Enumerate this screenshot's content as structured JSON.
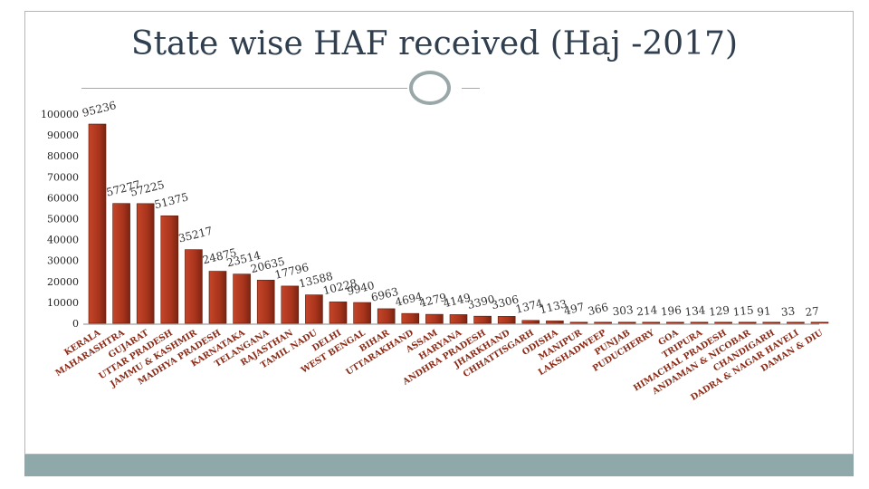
{
  "slide": {
    "title": "State wise HAF received (Haj -2017)"
  },
  "colors": {
    "bar": "#a8341c",
    "bar_dark": "#6e1f0e",
    "frame": "#b5b5b5",
    "footer": "#8fa9ab",
    "title": "#2f3f4f"
  },
  "chart_data": {
    "type": "bar",
    "title": "State wise HAF received (Haj -2017)",
    "xlabel": "",
    "ylabel": "",
    "ylim": [
      0,
      100000
    ],
    "yticks": [
      0,
      10000,
      20000,
      30000,
      40000,
      50000,
      60000,
      70000,
      80000,
      90000,
      100000
    ],
    "grid": false,
    "legend": "none",
    "categories": [
      "KERALA",
      "MAHARASHTRA",
      "GUJARAT",
      "UTTAR PRADESH",
      "JAMMU & KASHMIR",
      "MADHYA PRADESH",
      "KARNATAKA",
      "TELANGANA",
      "RAJASTHAN",
      "TAMIL NADU",
      "DELHI",
      "WEST BENGAL",
      "BIHAR",
      "UTTARAKHAND",
      "ASSAM",
      "HARYANA",
      "ANDHRA PRADESH",
      "JHARKHAND",
      "CHHATTISGARH",
      "ODISHA",
      "MANIPUR",
      "LAKSHADWEEP",
      "PUNJAB",
      "PUDUCHERRY",
      "GOA",
      "TRIPURA",
      "HIMACHAL PRADESH",
      "ANDAMAN & NICOBAR",
      "CHANDIGARH",
      "DADRA & NAGAR HAVELI",
      "DAMAN & DIU"
    ],
    "values": [
      95236,
      57277,
      57225,
      51375,
      35217,
      24875,
      23514,
      20635,
      17796,
      13588,
      10228,
      9940,
      6963,
      4694,
      4279,
      4149,
      3390,
      3306,
      1374,
      1133,
      497,
      366,
      303,
      214,
      196,
      134,
      129,
      115,
      91,
      33,
      27
    ],
    "data_labels": [
      "95236",
      "57277",
      "57225",
      "51375",
      "35217",
      "24875",
      "23514",
      "20635",
      "17796",
      "13588",
      "10228",
      "9940",
      "6963",
      "4694",
      "4279",
      "4149",
      "3390",
      "3306",
      "1374",
      "1133",
      "497",
      "366",
      "303",
      "214",
      "196",
      "134",
      "129",
      "115",
      "91",
      "33",
      "27"
    ]
  }
}
